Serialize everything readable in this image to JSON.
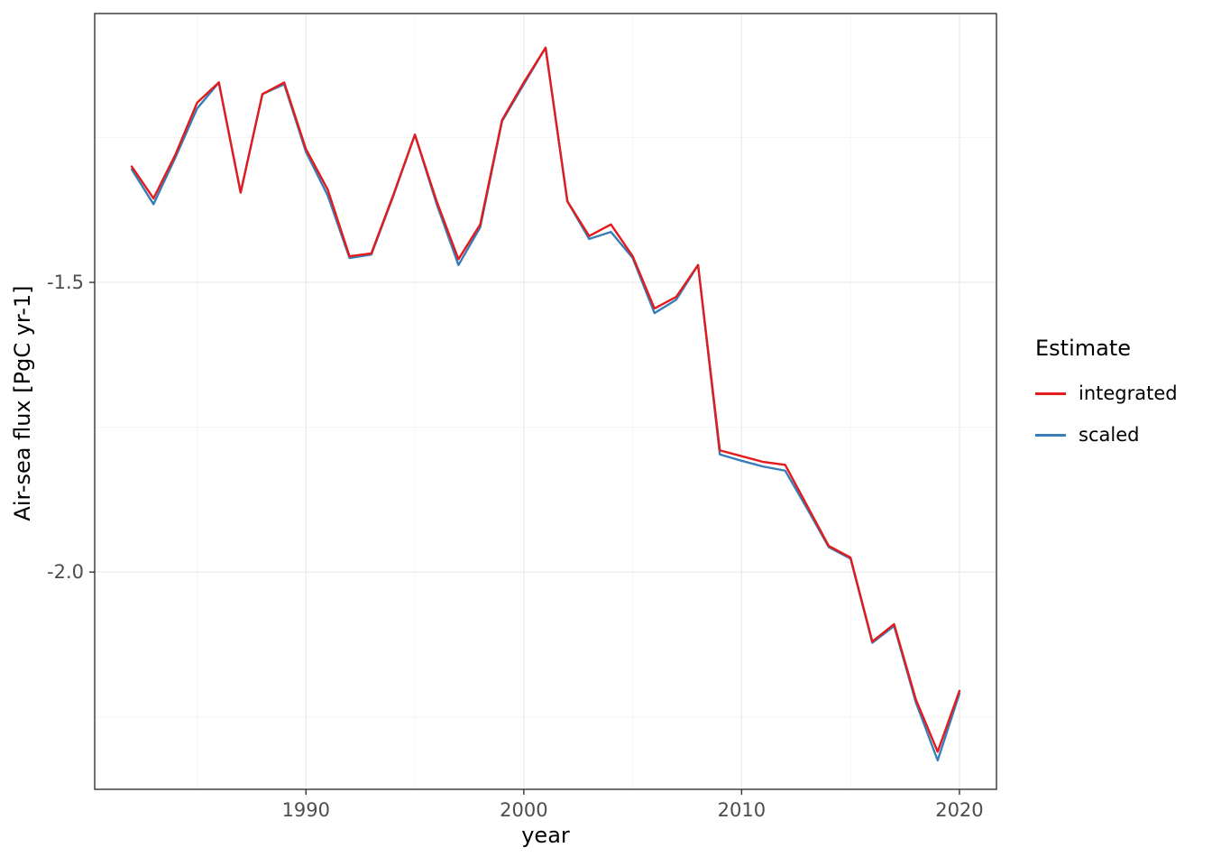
{
  "figure": {
    "xlabel": "year",
    "ylabel": "Air-sea flux [PgC yr-1]",
    "legend": {
      "title": "Estimate",
      "entries": [
        {
          "label": "integrated",
          "color": "#E41A1C"
        },
        {
          "label": "scaled",
          "color": "#377EB8"
        }
      ]
    }
  },
  "chart_data": {
    "type": "line",
    "title": "",
    "xlabel": "year",
    "ylabel": "Air-sea flux [PgC yr-1]",
    "x": [
      1982,
      1983,
      1984,
      1985,
      1986,
      1987,
      1988,
      1989,
      1990,
      1991,
      1992,
      1993,
      1994,
      1995,
      1996,
      1997,
      1998,
      1999,
      2000,
      2001,
      2002,
      2003,
      2004,
      2005,
      2006,
      2007,
      2008,
      2009,
      2010,
      2011,
      2012,
      2013,
      2014,
      2015,
      2016,
      2017,
      2018,
      2019,
      2020
    ],
    "series": [
      {
        "name": "integrated",
        "color": "#E41A1C",
        "values": [
          -1.3,
          -1.355,
          -1.28,
          -1.19,
          -1.155,
          -1.345,
          -1.175,
          -1.155,
          -1.27,
          -1.34,
          -1.455,
          -1.45,
          -1.35,
          -1.245,
          -1.36,
          -1.46,
          -1.4,
          -1.22,
          -1.155,
          -1.095,
          -1.36,
          -1.42,
          -1.4,
          -1.455,
          -1.545,
          -1.525,
          -1.47,
          -1.79,
          -1.8,
          -1.81,
          -1.815,
          -1.885,
          -1.955,
          -1.975,
          -2.12,
          -2.09,
          -2.22,
          -2.31,
          -2.205
        ]
      },
      {
        "name": "scaled",
        "color": "#377EB8",
        "values": [
          -1.305,
          -1.365,
          -1.285,
          -1.2,
          -1.155,
          -1.345,
          -1.175,
          -1.158,
          -1.275,
          -1.35,
          -1.458,
          -1.452,
          -1.352,
          -1.245,
          -1.365,
          -1.47,
          -1.405,
          -1.222,
          -1.158,
          -1.095,
          -1.36,
          -1.425,
          -1.413,
          -1.458,
          -1.553,
          -1.53,
          -1.47,
          -1.797,
          -1.808,
          -1.818,
          -1.825,
          -1.89,
          -1.957,
          -1.977,
          -2.122,
          -2.093,
          -2.225,
          -2.325,
          -2.21
        ]
      }
    ],
    "xlim": [
      1980.3,
      2021.7
    ],
    "ylim": [
      -2.375,
      -1.036
    ],
    "x_ticks": [
      1990,
      2000,
      2010,
      2020
    ],
    "x_tick_labels": [
      "1990",
      "2000",
      "2010",
      "2020"
    ],
    "x_minor_ticks": [
      1985,
      1995,
      2005,
      2015
    ],
    "y_ticks": [
      -1.5,
      -2.0
    ],
    "y_tick_labels": [
      "-1.5",
      "-2.0"
    ],
    "y_minor_ticks": [
      -1.25,
      -1.75,
      -2.25
    ],
    "grid": true,
    "legend_position": "right",
    "legend_title": "Estimate"
  },
  "style": {
    "grid_major": "#EBEBEB",
    "grid_minor": "#F5F5F5",
    "panel_border": "#333333",
    "tick_color": "#333333",
    "tick_label_color": "#4D4D4D",
    "background": "#FFFFFF"
  }
}
